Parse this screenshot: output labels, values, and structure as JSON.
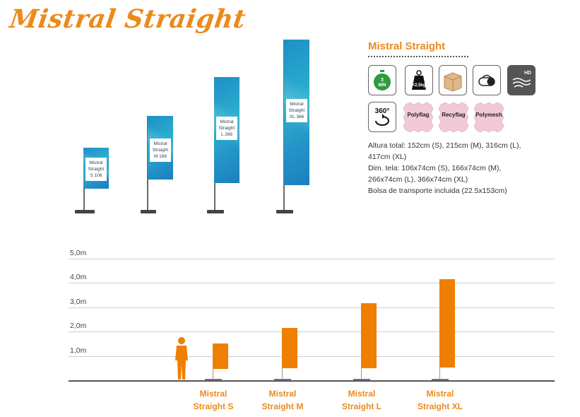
{
  "header": {
    "title": "Mistral Straight"
  },
  "product": {
    "name": "Mistral Straight",
    "icons": [
      {
        "name": "assembly-time-icon",
        "text": "3 MIN"
      },
      {
        "name": "weight-icon",
        "text": "< 2,5kg"
      },
      {
        "name": "packaging-box-icon",
        "text": ""
      },
      {
        "name": "carry-bag-icon",
        "text": ""
      },
      {
        "name": "hd-print-icon",
        "text": "HD"
      },
      {
        "name": "rotation-360-icon",
        "text": "360°"
      }
    ],
    "fabrics": [
      "Polyflag",
      "Recyflag",
      "Polymesh"
    ],
    "specs": [
      "Altura total: 152cm (S), 215cm (M), 316cm (L),",
      "417cm (XL)",
      "Dim. tela: 106x74cm (S), 166x74cm (M),",
      "266x74cm (L), 366x74cm (XL)",
      "Bolsa de transporte incluida (22.5x153cm)"
    ]
  },
  "flags": [
    {
      "lines": [
        "Mistral",
        "Straight",
        "S 106"
      ]
    },
    {
      "lines": [
        "Mistral",
        "Straight",
        "M 166"
      ]
    },
    {
      "lines": [
        "Mistral",
        "Straight",
        "L 266"
      ]
    },
    {
      "lines": [
        "Mistral",
        "Straight",
        "XL 366"
      ]
    }
  ],
  "colors": {
    "accent": "#ec8a1c",
    "bar": "#ef7f00",
    "fabric": "#2ba6cf"
  },
  "chart_data": {
    "type": "bar",
    "yticks": [
      "1,0m",
      "2,0m",
      "3,0m",
      "4,0m",
      "5,0m"
    ],
    "ylim": [
      0,
      5
    ],
    "categories": [
      "Mistral Straight S",
      "Mistral Straight M",
      "Mistral Straight L",
      "Mistral Straight XL"
    ],
    "label_lines": [
      [
        "Mistral",
        "Straight S"
      ],
      [
        "Mistral",
        "Straight M"
      ],
      [
        "Mistral",
        "Straight L"
      ],
      [
        "Mistral",
        "Straight XL"
      ]
    ],
    "values": [
      1.52,
      2.15,
      3.16,
      4.17
    ],
    "fabric_lengths": [
      1.06,
      1.66,
      2.66,
      3.66
    ],
    "grid": true
  }
}
